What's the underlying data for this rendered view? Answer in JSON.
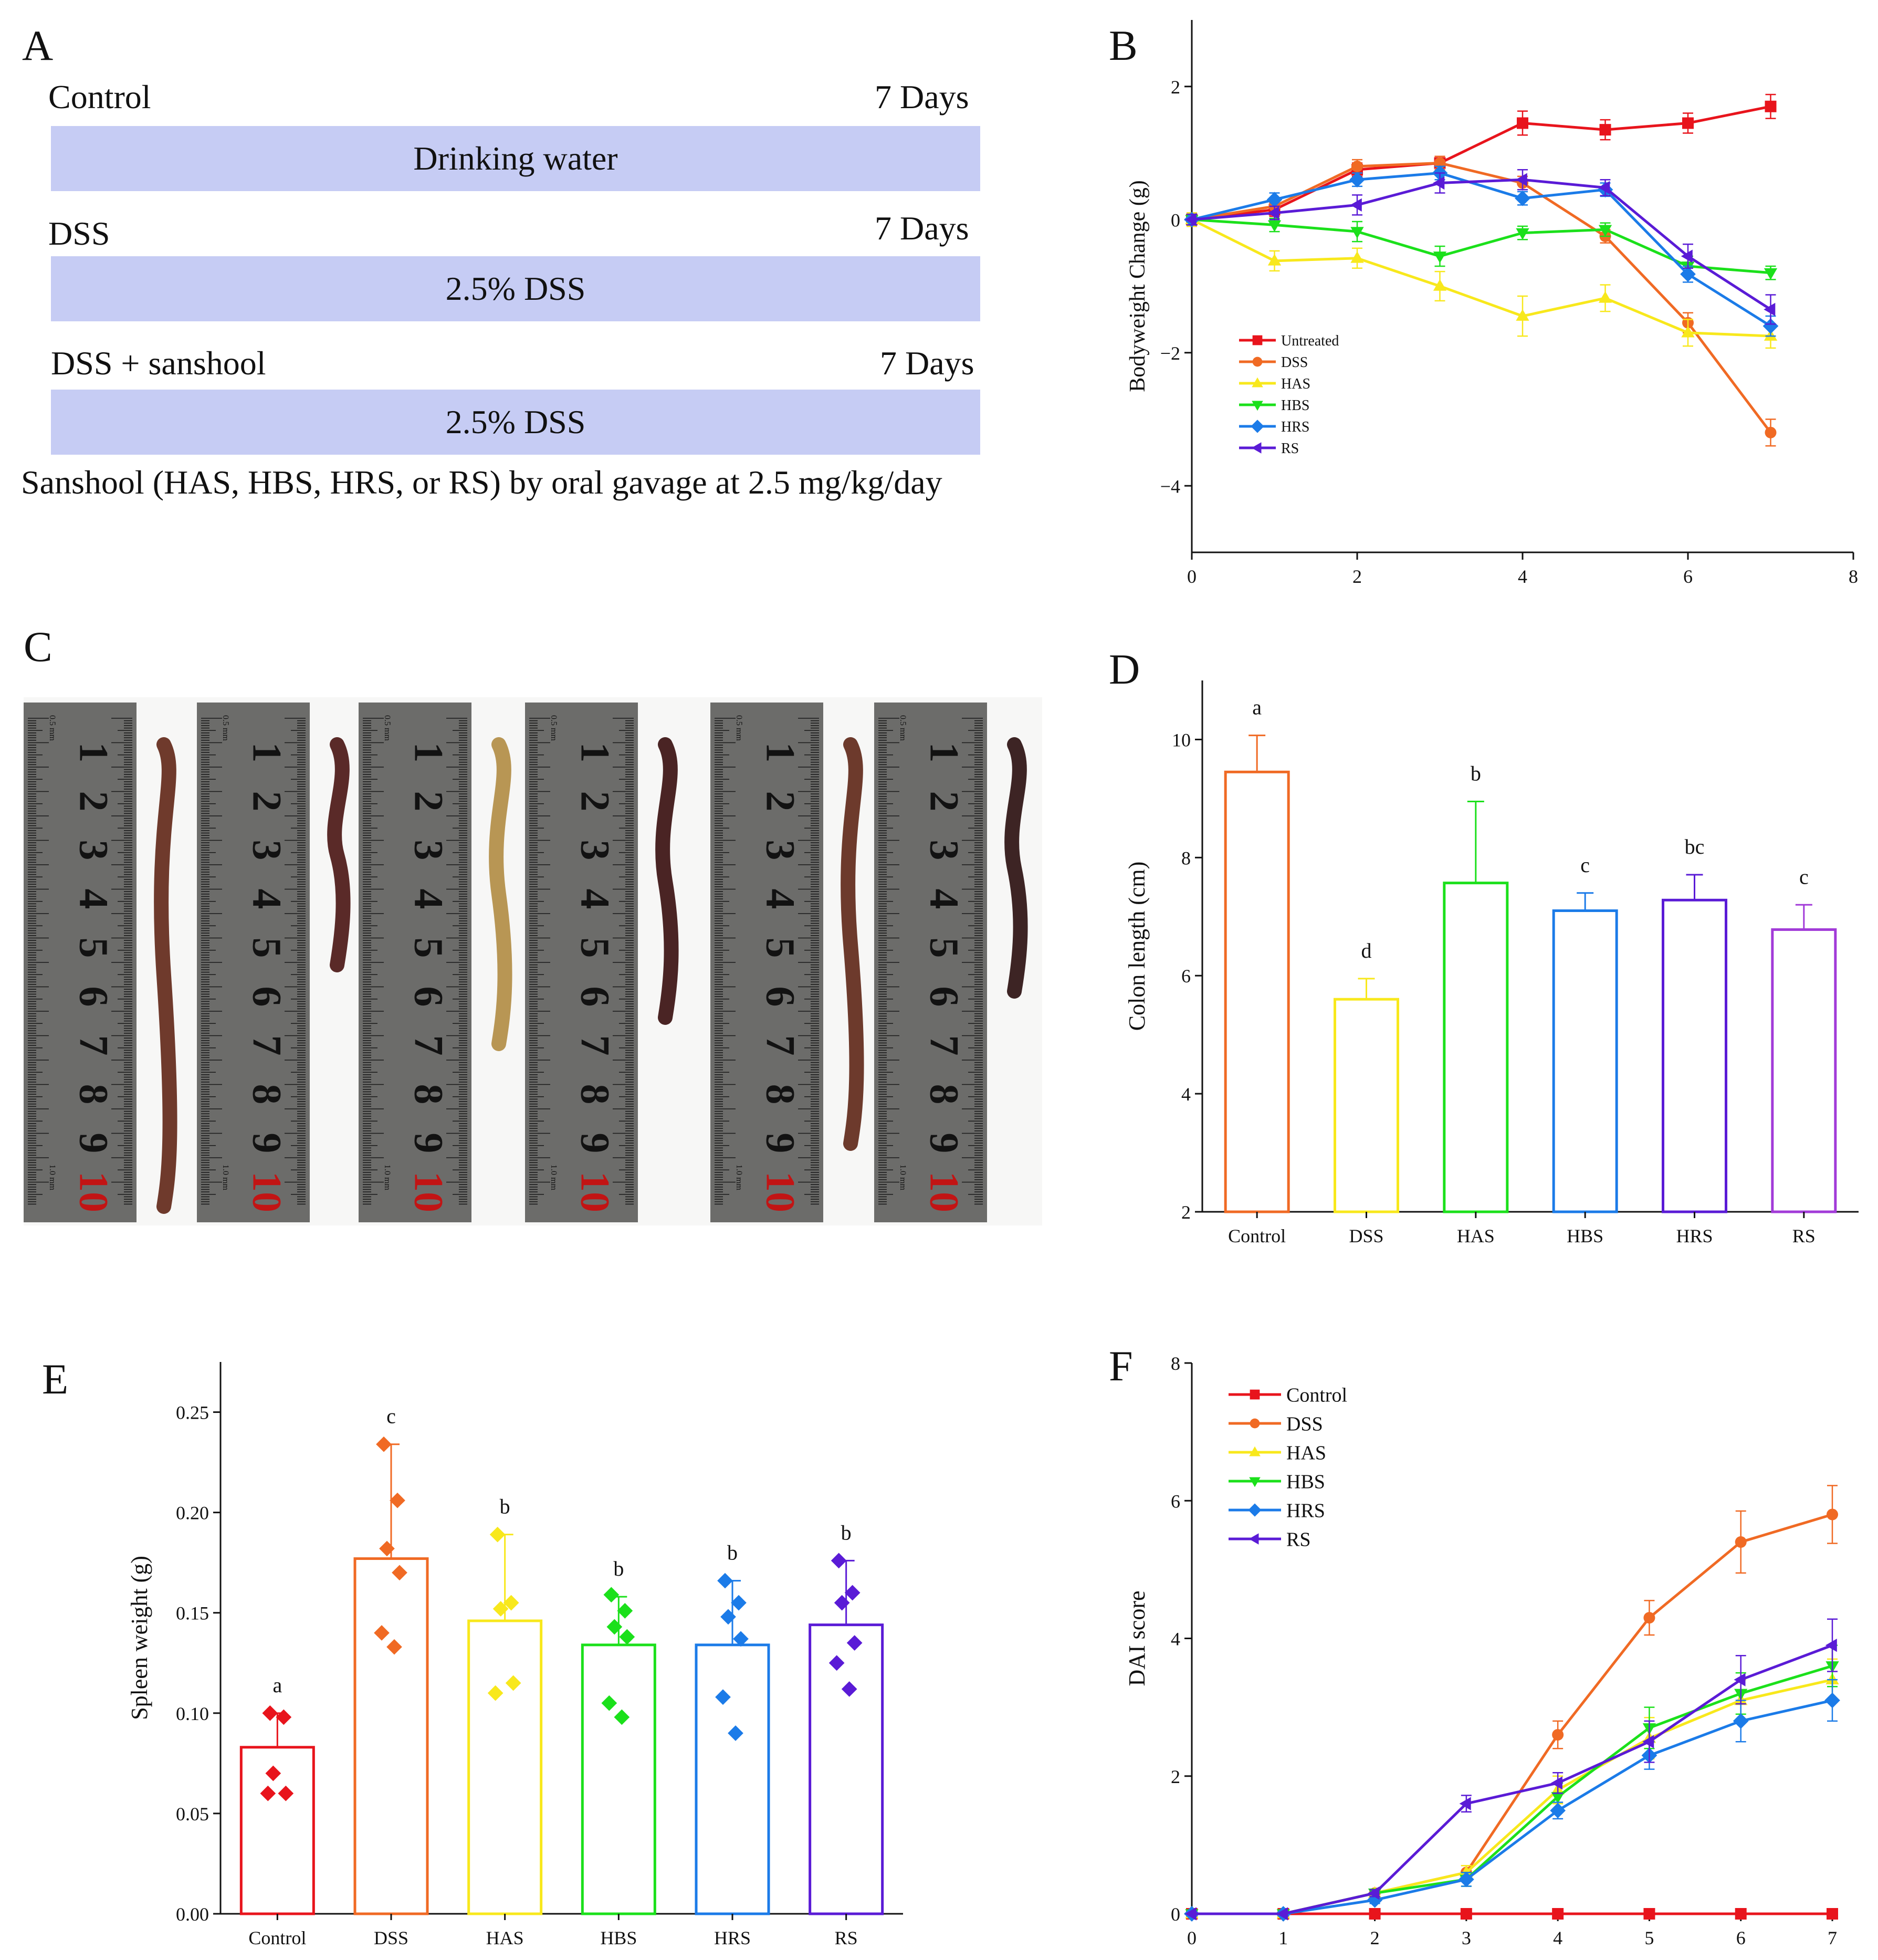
{
  "panels": {
    "A": {
      "letter": "A",
      "rows": [
        {
          "label": "Control",
          "days": "7 Days",
          "bar": "Drinking water"
        },
        {
          "label": "DSS",
          "days": "7 Days",
          "bar": "2.5% DSS"
        },
        {
          "label": "DSS + sanshool",
          "days": "7 Days",
          "bar": "2.5% DSS"
        }
      ],
      "footnote": "Sanshool (HAS, HBS, HRS, or RS) by oral gavage at 2.5 mg/kg/day"
    },
    "C": {
      "letter": "C",
      "ruler_ticks": [
        "1",
        "2",
        "3",
        "4",
        "5",
        "6",
        "7",
        "8",
        "9",
        "10"
      ],
      "ruler_unit_top": "0.5 mm",
      "ruler_unit_bottom": "1.0 mm"
    }
  },
  "chart_data": [
    {
      "id": "B",
      "letter": "B",
      "type": "line",
      "title": "",
      "xlabel": "",
      "ylabel": "Bodyweight Change (g)",
      "xlim": [
        0,
        8
      ],
      "ylim": [
        -5,
        3
      ],
      "xticks": [
        "0",
        "2",
        "4",
        "6",
        "8"
      ],
      "yticks": [
        "2",
        "0",
        "−2",
        "−4"
      ],
      "x": [
        0,
        1,
        2,
        3,
        4,
        5,
        6,
        7
      ],
      "legend_position": "lower-left",
      "series": [
        {
          "name": "Untreated",
          "color": "#e8141c",
          "marker": "square",
          "values": [
            0,
            0.15,
            0.75,
            0.85,
            1.45,
            1.35,
            1.45,
            1.7
          ],
          "err": [
            0.1,
            0.1,
            0.1,
            0.1,
            0.18,
            0.15,
            0.15,
            0.18
          ]
        },
        {
          "name": "DSS",
          "color": "#f06a24",
          "marker": "circle",
          "values": [
            0,
            0.2,
            0.8,
            0.85,
            0.55,
            -0.25,
            -1.55,
            -3.2
          ],
          "err": [
            0.1,
            0.1,
            0.1,
            0.1,
            0.1,
            0.1,
            0.15,
            0.2
          ]
        },
        {
          "name": "HAS",
          "color": "#f8e81c",
          "marker": "triangle-up",
          "values": [
            0,
            -0.62,
            -0.58,
            -1.0,
            -1.45,
            -1.18,
            -1.7,
            -1.75
          ],
          "err": [
            0.1,
            0.15,
            0.15,
            0.22,
            0.3,
            0.2,
            0.2,
            0.18
          ]
        },
        {
          "name": "HBS",
          "color": "#1be01b",
          "marker": "triangle-down",
          "values": [
            0,
            -0.08,
            -0.18,
            -0.55,
            -0.2,
            -0.15,
            -0.7,
            -0.8
          ],
          "err": [
            0.08,
            0.1,
            0.15,
            0.15,
            0.1,
            0.1,
            0.15,
            0.1
          ]
        },
        {
          "name": "HRS",
          "color": "#1b7be8",
          "marker": "diamond",
          "values": [
            0,
            0.3,
            0.6,
            0.7,
            0.32,
            0.45,
            -0.82,
            -1.6
          ],
          "err": [
            0.08,
            0.1,
            0.1,
            0.1,
            0.1,
            0.1,
            0.12,
            0.15
          ]
        },
        {
          "name": "RS",
          "color": "#5a1bd6",
          "marker": "triangle-left",
          "values": [
            0,
            0.1,
            0.22,
            0.55,
            0.6,
            0.48,
            -0.55,
            -1.35
          ],
          "err": [
            0.08,
            0.1,
            0.15,
            0.15,
            0.15,
            0.12,
            0.18,
            0.22
          ]
        }
      ]
    },
    {
      "id": "D",
      "letter": "D",
      "type": "bar",
      "title": "",
      "xlabel": "",
      "ylabel": "Colon length (cm)",
      "ylim": [
        2,
        11
      ],
      "yticks": [
        "2",
        "4",
        "6",
        "8",
        "10"
      ],
      "categories": [
        "Control",
        "DSS",
        "HAS",
        "HBS",
        "HRS",
        "RS"
      ],
      "values": [
        9.45,
        5.6,
        7.57,
        7.1,
        7.28,
        6.78
      ],
      "err": [
        0.62,
        0.35,
        1.38,
        0.3,
        0.43,
        0.42
      ],
      "letters": [
        "a",
        "d",
        "b",
        "c",
        "bc",
        "c"
      ],
      "colors": [
        "#f06a24",
        "#f8e81c",
        "#1be01b",
        "#1b7be8",
        "#5a1bd6",
        "#a23bd8"
      ]
    },
    {
      "id": "E",
      "letter": "E",
      "type": "bar",
      "title": "",
      "xlabel": "",
      "ylabel": "Spleen weight (g)",
      "ylim": [
        0,
        0.275
      ],
      "yticks": [
        "0.00",
        "0.05",
        "0.10",
        "0.15",
        "0.20",
        "0.25"
      ],
      "categories": [
        "Control",
        "DSS",
        "HAS",
        "HBS",
        "HRS",
        "RS"
      ],
      "values": [
        0.083,
        0.177,
        0.146,
        0.134,
        0.134,
        0.144
      ],
      "err": [
        0.017,
        0.057,
        0.043,
        0.024,
        0.032,
        0.032
      ],
      "letters": [
        "a",
        "c",
        "b",
        "b",
        "b",
        "b"
      ],
      "colors": [
        "#e8141c",
        "#f06a24",
        "#f8e81c",
        "#1be01b",
        "#1b7be8",
        "#5a1bd6"
      ],
      "points": [
        [
          0.1,
          0.098,
          0.07,
          0.06,
          0.06
        ],
        [
          0.234,
          0.206,
          0.182,
          0.17,
          0.14,
          0.133
        ],
        [
          0.189,
          0.155,
          0.152,
          0.115,
          0.11
        ],
        [
          0.159,
          0.151,
          0.143,
          0.138,
          0.105,
          0.098
        ],
        [
          0.166,
          0.155,
          0.148,
          0.137,
          0.108,
          0.09
        ],
        [
          0.176,
          0.16,
          0.155,
          0.135,
          0.125,
          0.112
        ]
      ]
    },
    {
      "id": "F",
      "letter": "F",
      "type": "line",
      "title": "",
      "xlabel": "",
      "ylabel": "DAI score",
      "xlim": [
        0,
        7
      ],
      "ylim": [
        0,
        8
      ],
      "xticks": [
        "0",
        "1",
        "2",
        "3",
        "4",
        "5",
        "6",
        "7"
      ],
      "yticks": [
        "0",
        "2",
        "4",
        "6",
        "8"
      ],
      "x": [
        0,
        1,
        2,
        3,
        4,
        5,
        6,
        7
      ],
      "legend_position": "top-left",
      "series": [
        {
          "name": "Control",
          "color": "#e8141c",
          "marker": "square",
          "values": [
            0,
            0,
            0,
            0,
            0,
            0,
            0,
            0
          ],
          "err": [
            0,
            0,
            0,
            0,
            0,
            0,
            0,
            0
          ]
        },
        {
          "name": "DSS",
          "color": "#f06a24",
          "marker": "circle",
          "values": [
            0,
            0,
            0.3,
            0.6,
            2.6,
            4.3,
            5.4,
            5.8
          ],
          "err": [
            0,
            0,
            0.05,
            0.1,
            0.2,
            0.25,
            0.45,
            0.42
          ]
        },
        {
          "name": "HAS",
          "color": "#f8e81c",
          "marker": "triangle-up",
          "values": [
            0,
            0,
            0.3,
            0.6,
            1.8,
            2.55,
            3.1,
            3.4
          ],
          "err": [
            0,
            0,
            0.05,
            0.1,
            0.2,
            0.3,
            0.3,
            0.3
          ]
        },
        {
          "name": "HBS",
          "color": "#1be01b",
          "marker": "triangle-down",
          "values": [
            0,
            0,
            0.3,
            0.5,
            1.7,
            2.7,
            3.2,
            3.6
          ],
          "err": [
            0,
            0,
            0.05,
            0.1,
            0.2,
            0.3,
            0.3,
            0.3
          ]
        },
        {
          "name": "HRS",
          "color": "#1b7be8",
          "marker": "diamond",
          "values": [
            0,
            0,
            0.2,
            0.5,
            1.5,
            2.3,
            2.8,
            3.1
          ],
          "err": [
            0,
            0,
            0.05,
            0.1,
            0.12,
            0.2,
            0.3,
            0.3
          ]
        },
        {
          "name": "RS",
          "color": "#5a1bd6",
          "marker": "triangle-left",
          "values": [
            0,
            0,
            0.3,
            1.6,
            1.9,
            2.5,
            3.4,
            3.9
          ],
          "err": [
            0,
            0,
            0.05,
            0.12,
            0.15,
            0.3,
            0.35,
            0.38
          ]
        }
      ]
    }
  ]
}
